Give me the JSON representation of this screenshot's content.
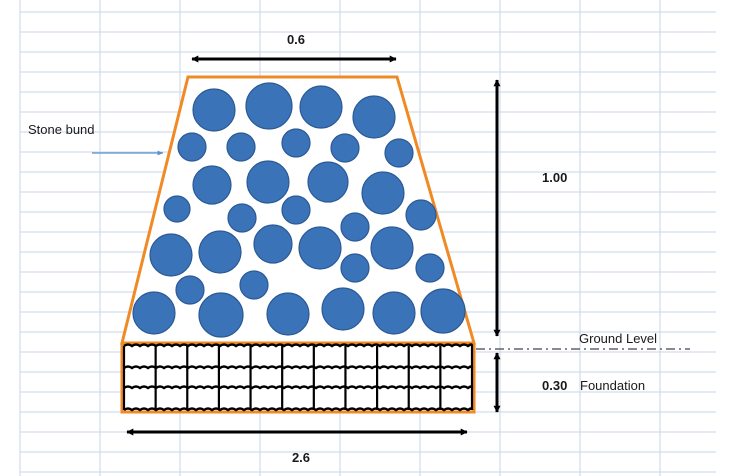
{
  "labels": {
    "top_width": "0.6",
    "height": "1.00",
    "base_width": "2.6",
    "foundation_depth": "0.30",
    "foundation": "Foundation",
    "ground_level": "Ground Level",
    "stone_bund": "Stone bund"
  },
  "colors": {
    "outline": "#f08a24",
    "stone_fill": "#3b73b9",
    "stone_stroke": "#2a5a95",
    "grid": "#c9d5ea",
    "arrow": "#000000"
  }
}
